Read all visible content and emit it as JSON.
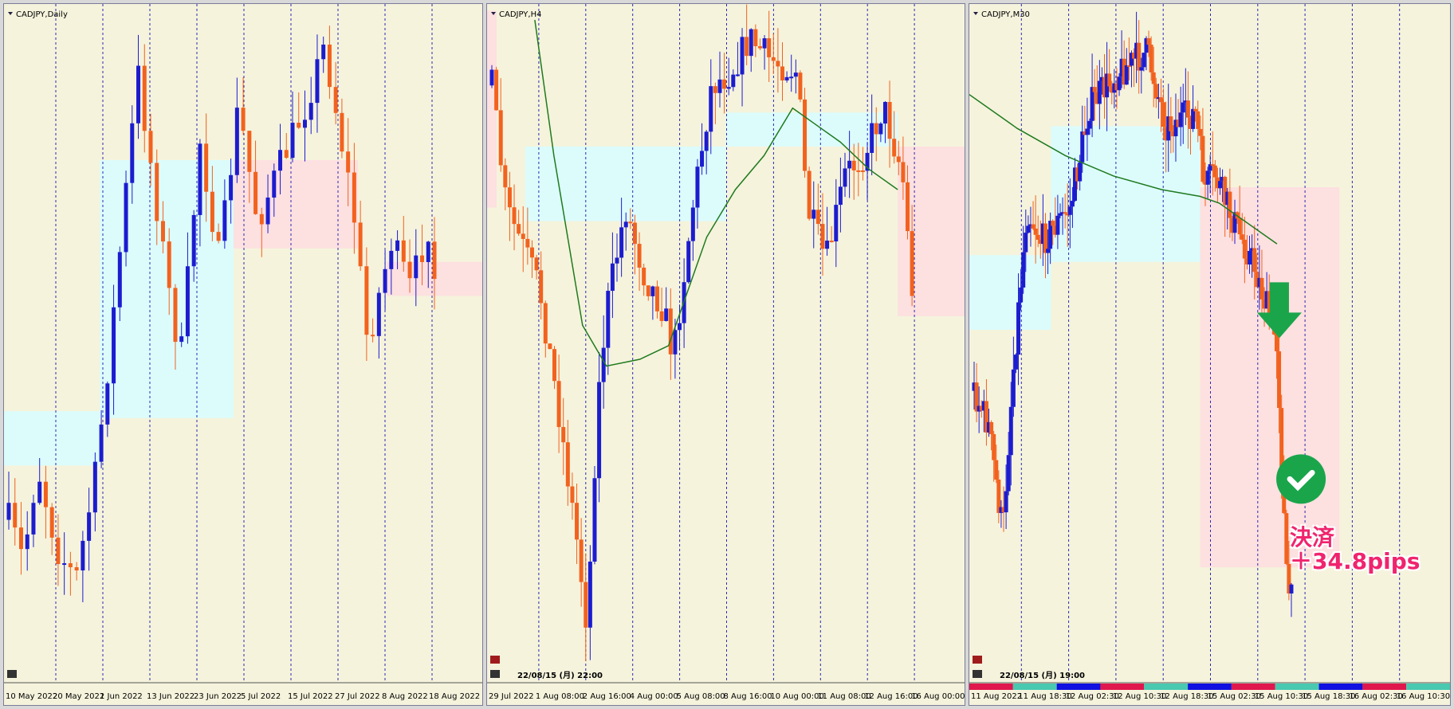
{
  "panels": [
    {
      "title": "CADJPY,Daily",
      "x_labels": [
        "10 May 2022",
        "20 May 2022",
        "1 Jun 2022",
        "13 Jun 2022",
        "23 Jun 2022",
        "5 Jul 2022",
        "15 Jul 2022",
        "27 Jul 2022",
        "8 Aug 2022",
        "18 Aug 2022"
      ]
    },
    {
      "title": "CADJPY,H4",
      "timestamp": "22/08/15 (月) 22:00",
      "x_labels": [
        "29 Jul 2022",
        "1 Aug 08:00",
        "2 Aug 16:00",
        "4 Aug 00:00",
        "5 Aug 08:00",
        "8 Aug 16:00",
        "10 Aug 00:00",
        "11 Aug 08:00",
        "12 Aug 16:00",
        "16 Aug 00:00"
      ]
    },
    {
      "title": "CADJPY,M30",
      "timestamp": "22/08/15 (月) 19:00",
      "x_labels": [
        "11 Aug 2022",
        "11 Aug 18:30",
        "12 Aug 02:30",
        "12 Aug 10:30",
        "12 Aug 18:30",
        "15 Aug 02:30",
        "15 Aug 10:30",
        "15 Aug 18:30",
        "16 Aug 02:30",
        "16 Aug 10:30"
      ]
    }
  ],
  "annotation": {
    "line1": "決済",
    "line2": "＋34.8pips"
  }
}
